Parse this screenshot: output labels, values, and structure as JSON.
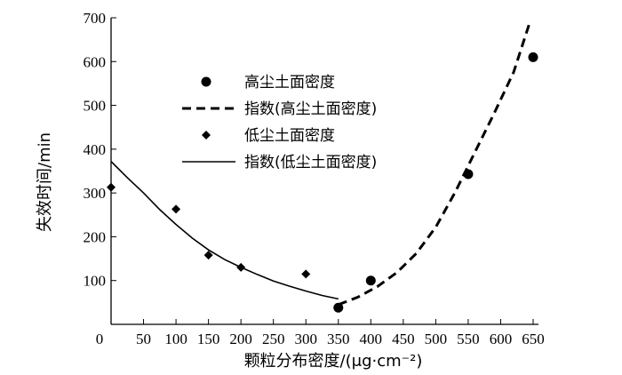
{
  "chart_data": {
    "type": "scatter",
    "xlabel": "颗粒分布密度/(μg·cm⁻²)",
    "ylabel": "失效时间/min",
    "xlim": [
      0,
      650
    ],
    "ylim": [
      0,
      700
    ],
    "x_ticks": [
      0,
      50,
      100,
      150,
      200,
      250,
      300,
      350,
      400,
      450,
      500,
      550,
      600,
      650
    ],
    "y_ticks": [
      100,
      200,
      300,
      400,
      500,
      600,
      700
    ],
    "grid": false,
    "legend_position": "upper-left",
    "series": [
      {
        "name": "高尘土面密度",
        "kind": "points",
        "marker": "circle",
        "points": [
          {
            "x": 350,
            "y": 38
          },
          {
            "x": 400,
            "y": 100
          },
          {
            "x": 550,
            "y": 343
          },
          {
            "x": 650,
            "y": 610
          }
        ]
      },
      {
        "name": "指数(高尘土面密度)",
        "kind": "trendline",
        "style": "dashed",
        "points": [
          {
            "x": 350,
            "y": 45
          },
          {
            "x": 380,
            "y": 62
          },
          {
            "x": 410,
            "y": 86
          },
          {
            "x": 440,
            "y": 118
          },
          {
            "x": 470,
            "y": 162
          },
          {
            "x": 500,
            "y": 222
          },
          {
            "x": 530,
            "y": 302
          },
          {
            "x": 560,
            "y": 392
          },
          {
            "x": 590,
            "y": 482
          },
          {
            "x": 620,
            "y": 576
          },
          {
            "x": 645,
            "y": 690
          }
        ]
      },
      {
        "name": "低尘土面密度",
        "kind": "points",
        "marker": "diamond",
        "points": [
          {
            "x": 0,
            "y": 313
          },
          {
            "x": 100,
            "y": 263
          },
          {
            "x": 150,
            "y": 158
          },
          {
            "x": 200,
            "y": 130
          },
          {
            "x": 300,
            "y": 115
          }
        ]
      },
      {
        "name": "指数(低尘土面密度)",
        "kind": "trendline",
        "style": "solid",
        "points": [
          {
            "x": 0,
            "y": 372
          },
          {
            "x": 25,
            "y": 335
          },
          {
            "x": 50,
            "y": 300
          },
          {
            "x": 75,
            "y": 262
          },
          {
            "x": 100,
            "y": 228
          },
          {
            "x": 125,
            "y": 197
          },
          {
            "x": 150,
            "y": 170
          },
          {
            "x": 175,
            "y": 148
          },
          {
            "x": 200,
            "y": 130
          },
          {
            "x": 225,
            "y": 114
          },
          {
            "x": 250,
            "y": 99
          },
          {
            "x": 275,
            "y": 87
          },
          {
            "x": 300,
            "y": 76
          },
          {
            "x": 325,
            "y": 66
          },
          {
            "x": 350,
            "y": 58
          }
        ]
      }
    ]
  }
}
